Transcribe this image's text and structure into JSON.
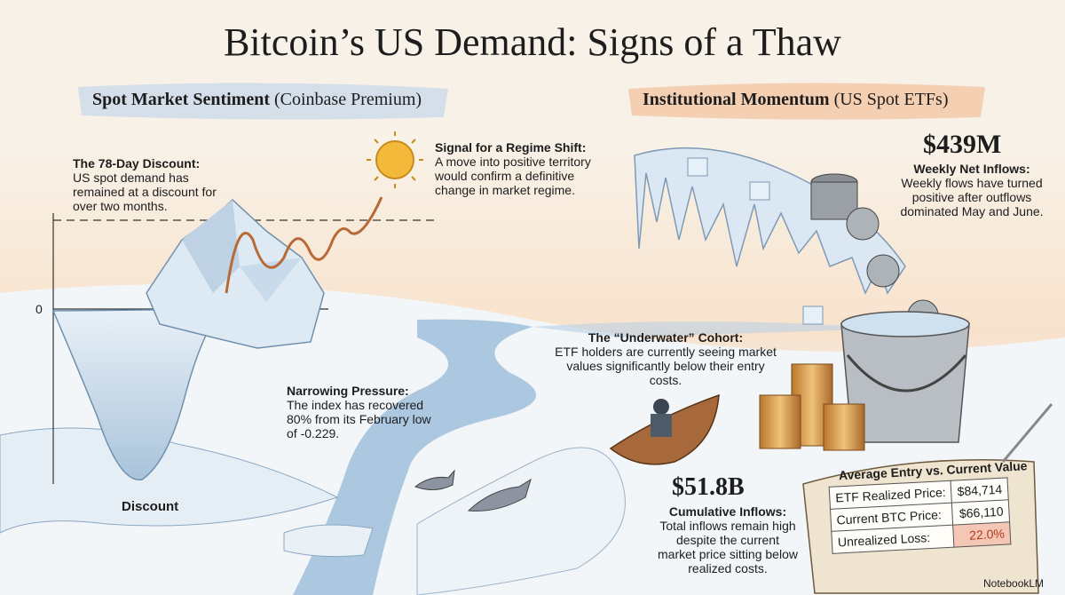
{
  "title": "Bitcoin’s US Demand: Signs of a Thaw",
  "left_section": {
    "heading": "Spot Market Sentiment",
    "subheading": "(Coinbase Premium)",
    "zero_label": "0",
    "discount_label": "Discount",
    "annotations": [
      {
        "title": "The 78-Day Discount:",
        "body": "US spot demand has remained at a discount for over two months."
      },
      {
        "title": "Signal for a Regime Shift:",
        "body": "A move into positive territory would confirm a definitive change in market regime."
      },
      {
        "title": "Narrowing Pressure:",
        "body": "The index has recovered 80% from its February low of -0.229."
      }
    ]
  },
  "right_section": {
    "heading": "Institutional Momentum",
    "subheading": "(US Spot ETFs)",
    "weekly": {
      "figure": "$439M",
      "title": "Weekly Net Inflows:",
      "body": "Weekly flows have turned positive after outflows dominated May and June."
    },
    "underwater": {
      "title": "The “Underwater” Cohort:",
      "body": "ETF holders are currently seeing market values significantly below their entry costs."
    },
    "cumulative": {
      "figure": "$51.8B",
      "title": "Cumulative Inflows:",
      "body": "Total inflows remain high despite the current market price sitting below realized costs."
    }
  },
  "table": {
    "title": "Average Entry vs. Current Value",
    "rows": [
      [
        "ETF Realized Price:",
        "$84,714"
      ],
      [
        "Current BTC Price:",
        "$66,110"
      ],
      [
        "Unrealized Loss:",
        "22.0%"
      ]
    ]
  },
  "footer": {
    "brand": "NotebookLM"
  }
}
